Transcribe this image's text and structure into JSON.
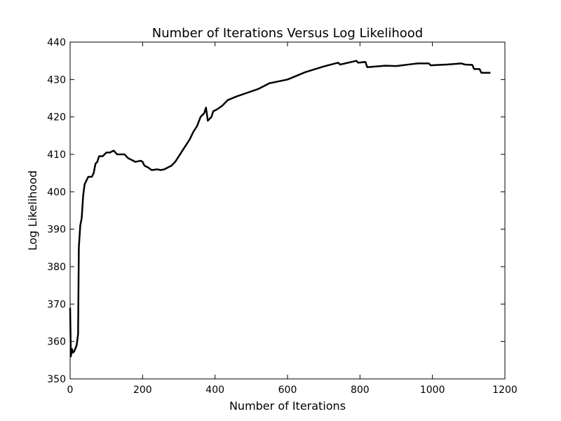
{
  "chart_data": {
    "type": "line",
    "title": "Number of Iterations Versus Log Likelihood",
    "x_label": "Number of Iterations",
    "y_label": "Log Likelihood",
    "x": [
      0,
      2,
      5,
      8,
      12,
      18,
      22,
      24,
      28,
      32,
      36,
      40,
      45,
      50,
      60,
      65,
      70,
      75,
      80,
      90,
      100,
      110,
      120,
      130,
      150,
      160,
      170,
      180,
      195,
      200,
      205,
      215,
      225,
      240,
      250,
      260,
      270,
      280,
      290,
      300,
      310,
      320,
      330,
      340,
      350,
      360,
      370,
      375,
      380,
      390,
      395,
      405,
      420,
      435,
      460,
      490,
      520,
      550,
      600,
      650,
      700,
      740,
      745,
      790,
      795,
      815,
      820,
      870,
      900,
      950,
      960,
      990,
      995,
      1040,
      1080,
      1090,
      1110,
      1115,
      1130,
      1135,
      1160
    ],
    "series": [
      {
        "name": "Log Likelihood",
        "color": "#000000",
        "values": [
          369,
          356,
          358,
          357,
          357.5,
          359,
          362,
          385,
          391,
          393,
          399,
          402,
          403,
          404,
          404,
          405,
          407.5,
          408,
          409.5,
          409.5,
          410.5,
          410.5,
          411,
          410,
          410,
          409,
          408.5,
          408,
          408.3,
          408,
          407,
          406.5,
          405.8,
          406,
          405.8,
          406,
          406.5,
          407,
          408,
          409.5,
          411,
          412.5,
          414,
          416,
          417.5,
          420,
          421,
          422.5,
          419,
          420,
          421.5,
          422,
          423,
          424.5,
          425.5,
          426.5,
          427.5,
          429,
          430,
          432,
          433.5,
          434.5,
          434,
          435,
          434.5,
          434.7,
          433.3,
          433.7,
          433.6,
          434.2,
          434.3,
          434.3,
          433.8,
          434,
          434.3,
          434,
          433.9,
          432.8,
          432.8,
          431.8,
          431.8
        ]
      }
    ],
    "xlim": [
      0,
      1200
    ],
    "xticks": [
      0,
      200,
      400,
      600,
      800,
      1000,
      1200
    ],
    "ylim": [
      350,
      440
    ],
    "yticks": [
      350,
      360,
      370,
      380,
      390,
      400,
      410,
      420,
      430,
      440
    ],
    "grid": false
  }
}
